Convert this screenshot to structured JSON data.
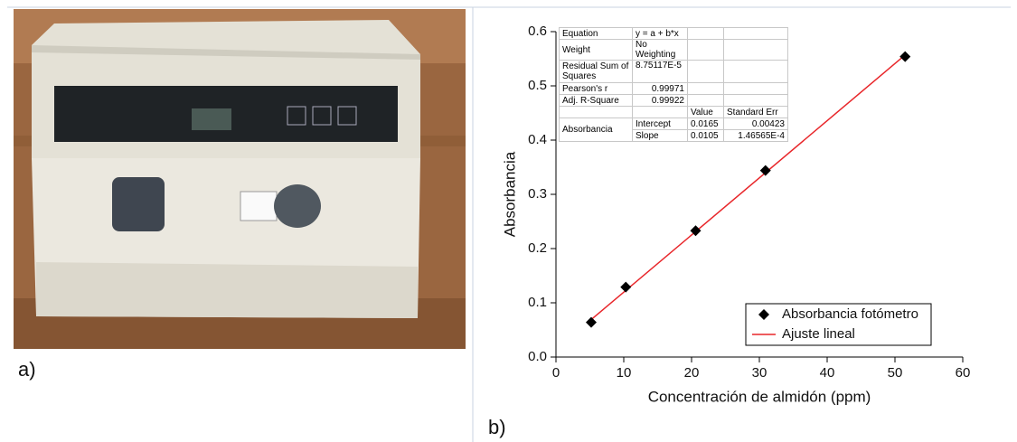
{
  "panel_a": {
    "label": "a)"
  },
  "chart_data": {
    "type": "scatter",
    "panel_label": "b)",
    "xlabel": "Concentración de almidón (ppm)",
    "ylabel": "Absorbancia",
    "xlim": [
      0,
      60
    ],
    "ylim": [
      0,
      0.6
    ],
    "xticks": [
      0,
      10,
      20,
      30,
      40,
      50,
      60
    ],
    "yticks": [
      {
        "value": 0,
        "label": "0.0"
      },
      0.1,
      0.2,
      0.3,
      0.4,
      0.5,
      0.6
    ],
    "series": [
      {
        "name": "Absorbancia fotómetro",
        "color": "#000000",
        "marker": "diamond",
        "x": [
          5.2,
          10.3,
          20.6,
          30.9,
          51.5
        ],
        "values": [
          0.064,
          0.129,
          0.233,
          0.344,
          0.554
        ]
      },
      {
        "name": "Ajuste lineal",
        "color": "#e8262a",
        "type": "line",
        "x": [
          5.2,
          51.5
        ],
        "values": [
          0.069,
          0.557
        ]
      }
    ],
    "legend": "lower right",
    "fit_table": {
      "rows": [
        [
          "Equation",
          "y = a + b*x"
        ],
        [
          "Weight",
          "No Weighting"
        ],
        [
          "Residual Sum of Squares",
          "8.75117E-5"
        ],
        [
          "Pearson's r",
          "0.99971"
        ],
        [
          "Adj. R-Square",
          "0.99922"
        ],
        [
          "Value",
          "Standard Err"
        ],
        [
          "Absorbancia",
          "Intercept",
          "0.0165",
          "0.00423"
        ],
        [
          "Slope",
          "0.0105",
          "1.46565E-4"
        ]
      ]
    }
  }
}
